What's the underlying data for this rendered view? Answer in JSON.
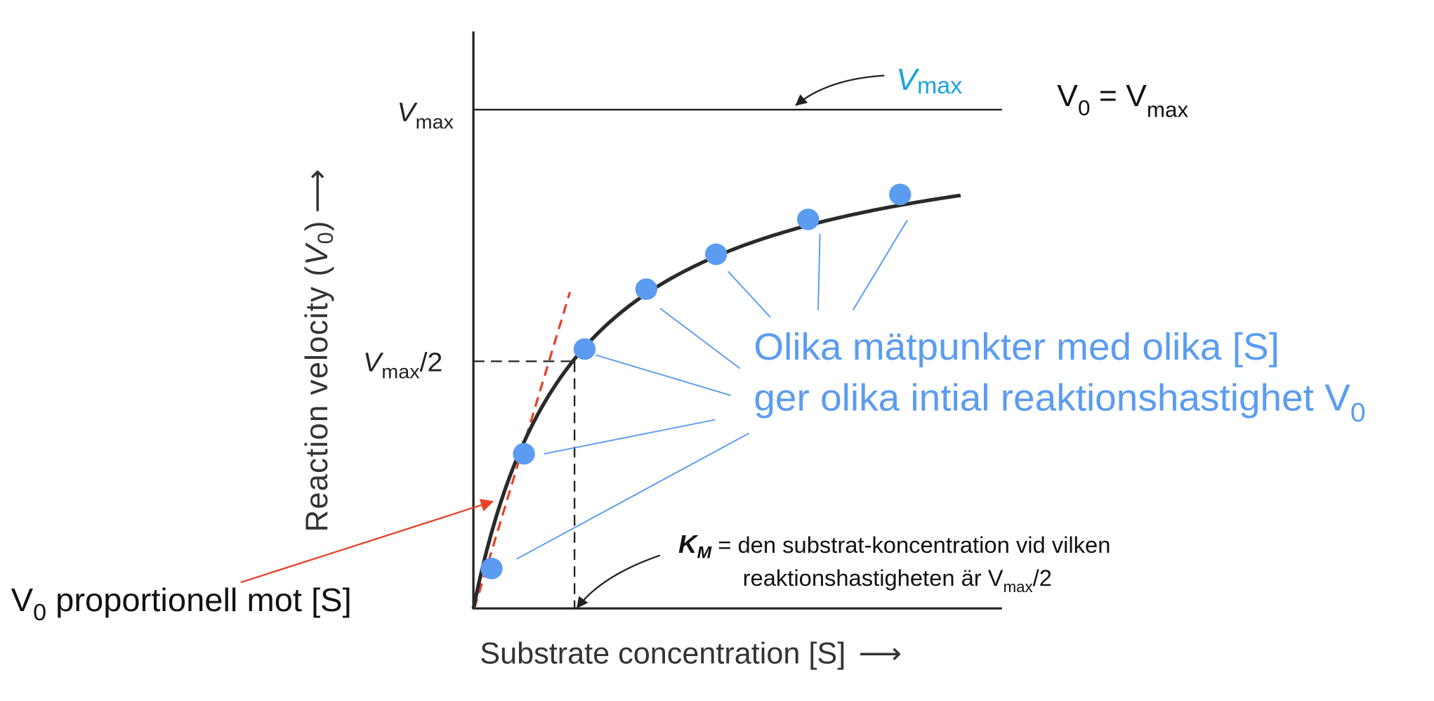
{
  "colors": {
    "axis": "#222222",
    "curve": "#2a2a2a",
    "points": "#5b9cf0",
    "annotation_blue": "#5b9cf0",
    "vmax_label": "#1aa3de",
    "tangent_red": "#e8412a"
  },
  "chart_data": {
    "type": "scatter",
    "model": "Michaelis-Menten",
    "xlabel": "Substrate concentration [S]",
    "ylabel_main": "Reaction velocity (",
    "ylabel_var": "V",
    "ylabel_sub": "0",
    "ylabel_close": ")",
    "arrow": "⟶",
    "grid": false,
    "tick_vmax": {
      "main": "V",
      "sub": "max"
    },
    "tick_half": {
      "main": "V",
      "sub": "max",
      "tail": "/2"
    },
    "points": [
      {
        "s_over_km": 0.18,
        "v_over_vmax": 0.08
      },
      {
        "s_over_km": 0.5,
        "v_over_vmax": 0.31
      },
      {
        "s_over_km": 1.1,
        "v_over_vmax": 0.52
      },
      {
        "s_over_km": 1.71,
        "v_over_vmax": 0.64
      },
      {
        "s_over_km": 2.4,
        "v_over_vmax": 0.71
      },
      {
        "s_over_km": 3.31,
        "v_over_vmax": 0.78
      },
      {
        "s_over_km": 4.22,
        "v_over_vmax": 0.83
      }
    ]
  },
  "annotations": {
    "vmax_arrow_label": {
      "main": "V",
      "sub": "max"
    },
    "v0_equals_vmax": {
      "v": "V",
      "sub0": "0",
      "eq": " = V",
      "sub": "max"
    },
    "measurement_line1": "Olika mätpunkter med olika [S]",
    "measurement_line2": "ger olika intial reaktionshastighet V",
    "measurement_line2_sub": "0",
    "proportional": {
      "v": "V",
      "sub": "0",
      "rest": " proportionell mot [S]"
    },
    "km_definition": {
      "k": "K",
      "k_sub": "M",
      "line1": " = den substrat-koncentration vid vilken",
      "line2": "reaktionshastigheten är V",
      "line2_sub": "max",
      "line2_tail": "/2"
    }
  }
}
